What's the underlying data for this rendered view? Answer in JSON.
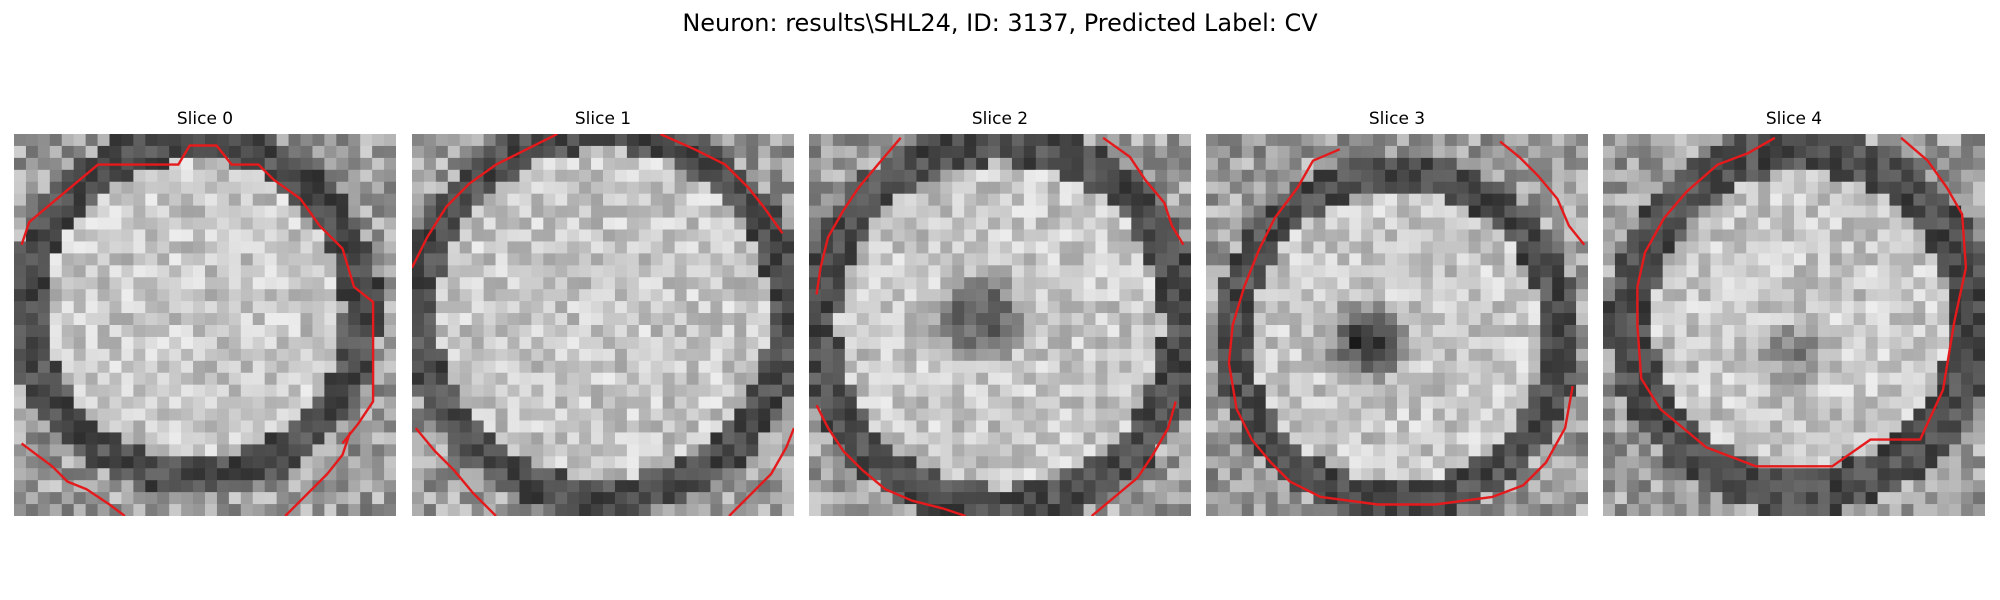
{
  "figure": {
    "title": "Neuron: results\\SHL24, ID: 3137, Predicted Label: CV"
  },
  "panels": [
    {
      "title": "Slice 0"
    },
    {
      "title": "Slice 1"
    },
    {
      "title": "Slice 2"
    },
    {
      "title": "Slice 3"
    },
    {
      "title": "Slice 4"
    }
  ],
  "colors": {
    "contour": "#e41a1c",
    "colormap": "grayscale"
  }
}
